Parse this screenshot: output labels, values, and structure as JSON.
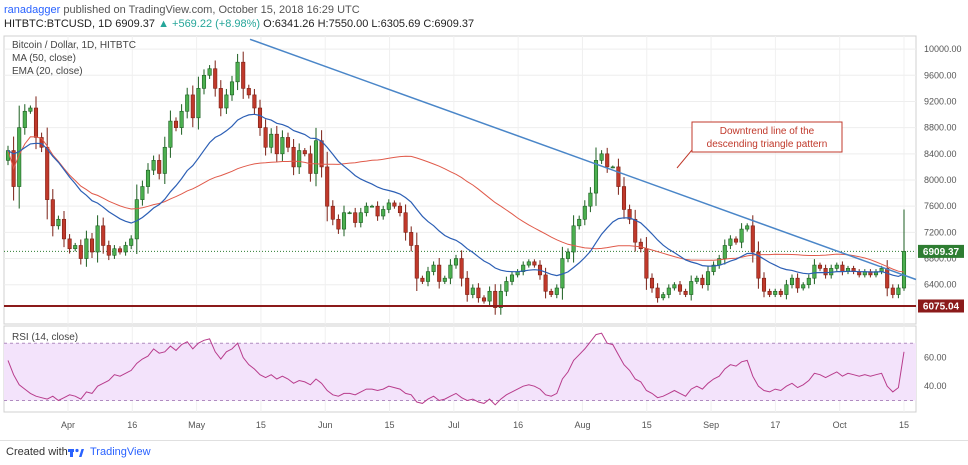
{
  "header": {
    "author": "ranadagger",
    "published_text": "published on TradingView.com, October 15, 2018 16:29 UTC",
    "symbol_line": "HITBTC:BTCUSD, 1D",
    "last": "6909.37",
    "change": "▲ +569.22 (+8.98%)",
    "ohlc": "O:6341.26 H:7550.00 L:6305.69 C:6909.37"
  },
  "legend": {
    "title": "Bitcoin / Dollar, 1D, HITBTC",
    "ma": "MA (50, close)",
    "ema": "EMA (20, close)",
    "rsi": "RSI (14, close)"
  },
  "annotation": {
    "line1": "Downtrend line of the",
    "line2": "descending triangle pattern"
  },
  "footer": {
    "created": "Created with",
    "brand": "TradingView"
  },
  "colors": {
    "up": "#26a69a",
    "down": "#d84a36",
    "candle_up_body": "#4caf50",
    "candle_down_body": "#c0392b",
    "ma": "#e05a4a",
    "ema": "#2c5fb5",
    "trendline": "#4a86c8",
    "support": "#8b1a1a",
    "rsi": "#b83c8c",
    "rsi_band": "#f3e3fb",
    "price_label": "#2e7d32"
  },
  "chart_data": [
    {
      "type": "candlestick",
      "title": "Bitcoin / Dollar, 1D, HITBTC",
      "y_ticks": [
        6400,
        6800,
        7200,
        7600,
        8000,
        8400,
        8800,
        9200,
        9600,
        10000
      ],
      "ylim": [
        5800,
        10200
      ],
      "x_tick_labels": [
        "Apr",
        "16",
        "May",
        "15",
        "Jun",
        "15",
        "Jul",
        "16",
        "Aug",
        "15",
        "Sep",
        "17",
        "Oct",
        "15"
      ],
      "grid": true,
      "last_price_label": "6909.37",
      "support_label": "6075.04",
      "support_level": 6075.04,
      "trendline": {
        "start_price": 10150,
        "end_price": 6480
      },
      "closes": [
        8450,
        7900,
        8800,
        9050,
        9100,
        8650,
        8500,
        7700,
        7300,
        7400,
        7100,
        6950,
        7000,
        6800,
        7100,
        6900,
        7300,
        7000,
        6850,
        6950,
        6900,
        7000,
        7100,
        7700,
        7900,
        8150,
        8300,
        8100,
        8500,
        8900,
        8800,
        9050,
        9300,
        8950,
        9400,
        9600,
        9700,
        9400,
        9100,
        9300,
        9500,
        9800,
        9400,
        9300,
        9100,
        8800,
        8500,
        8700,
        8400,
        8650,
        8500,
        8200,
        8450,
        8400,
        8100,
        8600,
        8200,
        7600,
        7400,
        7250,
        7500,
        7500,
        7350,
        7500,
        7600,
        7600,
        7450,
        7550,
        7650,
        7600,
        7500,
        7200,
        7000,
        6500,
        6450,
        6600,
        6700,
        6450,
        6500,
        6700,
        6800,
        6500,
        6250,
        6350,
        6200,
        6150,
        6300,
        6050,
        6300,
        6450,
        6550,
        6600,
        6700,
        6750,
        6700,
        6550,
        6300,
        6250,
        6350,
        6800,
        6900,
        7300,
        7400,
        7600,
        7800,
        8300,
        8400,
        8200,
        8200,
        7900,
        7550,
        7400,
        7050,
        6950,
        6500,
        6350,
        6200,
        6250,
        6350,
        6400,
        6300,
        6250,
        6450,
        6500,
        6400,
        6600,
        6700,
        6800,
        7000,
        7100,
        7050,
        7250,
        7300,
        6900,
        6500,
        6300,
        6250,
        6300,
        6250,
        6400,
        6500,
        6350,
        6400,
        6500,
        6700,
        6650,
        6550,
        6650,
        6700,
        6600,
        6650,
        6600,
        6550,
        6600,
        6550,
        6600,
        6650,
        6350,
        6250,
        6350,
        6909.37
      ]
    },
    {
      "type": "line",
      "title": "RSI (14, close)",
      "y_ticks": [
        40,
        60
      ],
      "ylim": [
        22,
        82
      ],
      "band": [
        30,
        70
      ],
      "series": [
        {
          "name": "RSI (14, close)",
          "values": [
            58,
            48,
            41,
            38,
            35,
            33,
            32,
            31,
            33,
            30,
            32,
            34,
            33,
            31,
            36,
            35,
            40,
            42,
            44,
            48,
            47,
            49,
            51,
            56,
            59,
            61,
            66,
            63,
            64,
            68,
            65,
            69,
            71,
            66,
            70,
            72,
            73,
            64,
            59,
            64,
            66,
            70,
            60,
            55,
            52,
            48,
            46,
            48,
            45,
            47,
            45,
            42,
            44,
            43,
            41,
            45,
            42,
            37,
            34,
            33,
            35,
            35,
            34,
            36,
            38,
            38,
            37,
            38,
            40,
            39,
            38,
            35,
            34,
            29,
            28,
            31,
            33,
            30,
            31,
            33,
            35,
            32,
            30,
            31,
            29,
            28,
            31,
            27,
            31,
            34,
            36,
            38,
            40,
            41,
            40,
            38,
            34,
            33,
            35,
            45,
            50,
            58,
            62,
            66,
            71,
            76,
            77,
            70,
            69,
            62,
            55,
            51,
            45,
            43,
            37,
            35,
            32,
            33,
            35,
            37,
            35,
            33,
            38,
            40,
            38,
            42,
            45,
            47,
            52,
            55,
            54,
            57,
            58,
            47,
            40,
            37,
            36,
            38,
            37,
            40,
            42,
            39,
            41,
            44,
            49,
            48,
            46,
            48,
            50,
            47,
            49,
            48,
            47,
            48,
            47,
            48,
            49,
            40,
            36,
            39,
            64
          ]
        }
      ]
    }
  ]
}
